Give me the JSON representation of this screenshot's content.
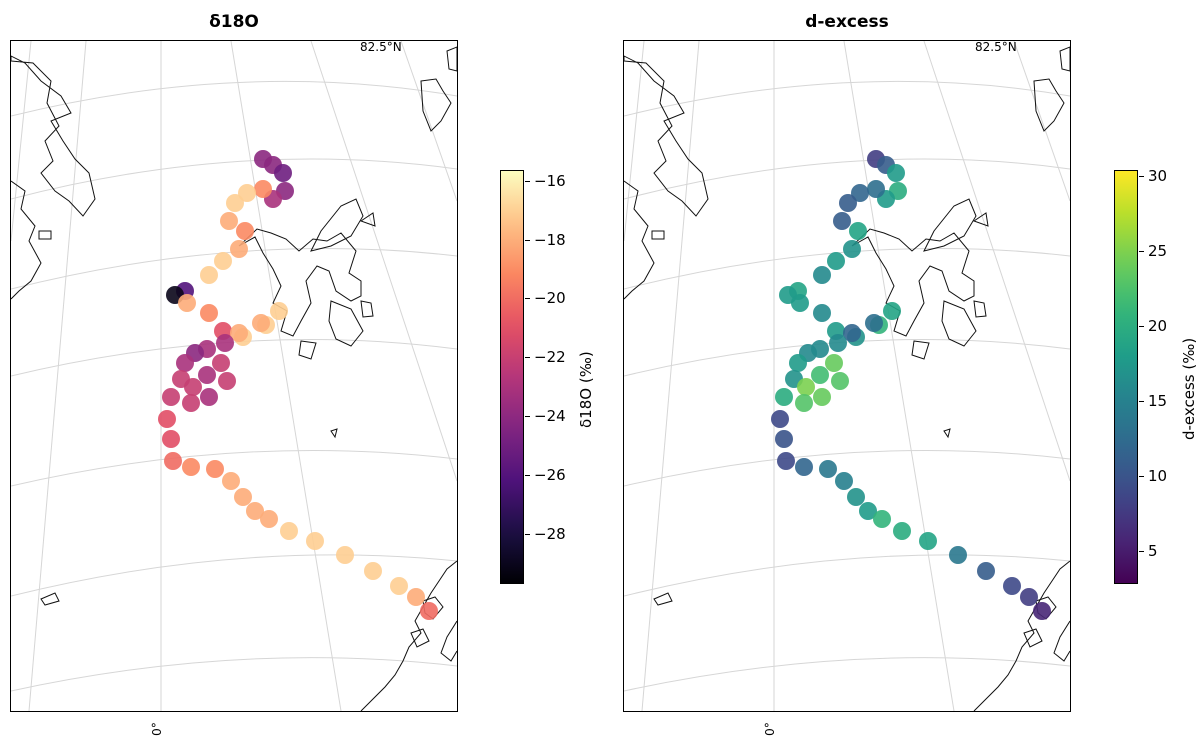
{
  "panels": [
    {
      "title": "δ18O",
      "corner_label": "82.5°N",
      "lon_label": "0°",
      "colorbar": {
        "label": "δ18O (‰)",
        "colormap": "magma",
        "range": [
          -29.6,
          -15.6
        ],
        "ticks": [
          "−16",
          "−18",
          "−20",
          "−22",
          "−24",
          "−26",
          "−28"
        ]
      }
    },
    {
      "title": "d-excess",
      "corner_label": "82.5°N",
      "lon_label": "0°",
      "colorbar": {
        "label": "d-excess (‰)",
        "colormap": "viridis",
        "range": [
          3.0,
          30.5
        ],
        "ticks": [
          "30",
          "25",
          "20",
          "15",
          "10",
          "5"
        ]
      }
    }
  ],
  "track": {
    "d18O": [
      -24,
      -24,
      -25,
      -24,
      -23,
      -19,
      -17,
      -17,
      -18,
      -19,
      -18,
      -17,
      -17,
      -26,
      -29,
      -18,
      -19,
      -21,
      -17,
      -17,
      -17,
      -18,
      -18,
      -23,
      -23,
      -24,
      -23,
      -22,
      -22,
      -23,
      -22,
      -22,
      -23,
      -22,
      -22,
      -21,
      -21,
      -20,
      -19,
      -19,
      -18,
      -18,
      -18,
      -18,
      -17,
      -17,
      -17,
      -17,
      -17,
      -18,
      -20
    ],
    "dexcess": [
      8,
      11,
      18,
      20,
      18,
      13,
      12,
      11,
      11,
      19,
      17,
      18,
      16,
      19,
      18,
      18,
      16,
      18,
      17,
      21,
      19,
      13,
      12,
      16,
      16,
      16,
      18,
      17,
      25,
      22,
      24,
      23,
      24,
      23,
      20,
      9,
      10,
      9,
      12,
      14,
      15,
      17,
      18,
      21,
      20,
      19,
      14,
      11,
      9,
      8,
      6
    ]
  }
}
